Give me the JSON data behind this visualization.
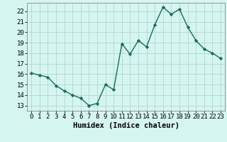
{
  "x": [
    0,
    1,
    2,
    3,
    4,
    5,
    6,
    7,
    8,
    9,
    10,
    11,
    12,
    13,
    14,
    15,
    16,
    17,
    18,
    19,
    20,
    21,
    22,
    23
  ],
  "y": [
    16.1,
    15.9,
    15.7,
    14.9,
    14.4,
    14.0,
    13.7,
    13.0,
    13.2,
    15.0,
    14.5,
    18.9,
    17.9,
    19.2,
    18.6,
    20.7,
    22.4,
    21.7,
    22.2,
    20.5,
    19.2,
    18.4,
    18.0,
    17.5
  ],
  "line_color": "#1a6b5a",
  "marker": "D",
  "marker_size": 2.2,
  "line_width": 1.0,
  "bg_color": "#d4f5f0",
  "grid_color": "#aed8d3",
  "xlabel": "Humidex (Indice chaleur)",
  "xlabel_fontsize": 7.5,
  "tick_fontsize": 6.5,
  "xlim": [
    -0.5,
    23.5
  ],
  "ylim": [
    12.5,
    22.8
  ],
  "yticks": [
    13,
    14,
    15,
    16,
    17,
    18,
    19,
    20,
    21,
    22
  ],
  "xticks": [
    0,
    1,
    2,
    3,
    4,
    5,
    6,
    7,
    8,
    9,
    10,
    11,
    12,
    13,
    14,
    15,
    16,
    17,
    18,
    19,
    20,
    21,
    22,
    23
  ]
}
